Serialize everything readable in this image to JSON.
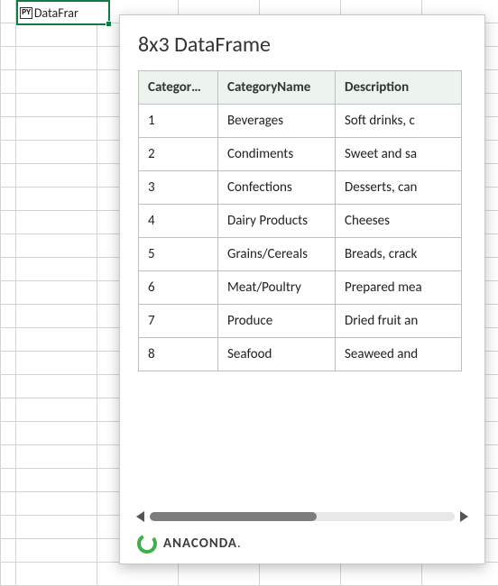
{
  "cell": {
    "badge": "PY",
    "text": "DataFrar"
  },
  "panel": {
    "title": "8x3 DataFrame",
    "columns": [
      "Categor…",
      "CategoryName",
      "Description"
    ],
    "rows": [
      {
        "id": "1",
        "name": "Beverages",
        "desc": "Soft drinks, c"
      },
      {
        "id": "2",
        "name": "Condiments",
        "desc": "Sweet and sa"
      },
      {
        "id": "3",
        "name": "Confections",
        "desc": "Desserts, can"
      },
      {
        "id": "4",
        "name": "Dairy Products",
        "desc": "Cheeses"
      },
      {
        "id": "5",
        "name": "Grains/Cereals",
        "desc": "Breads, crack"
      },
      {
        "id": "6",
        "name": "Meat/Poultry",
        "desc": "Prepared mea"
      },
      {
        "id": "7",
        "name": "Produce",
        "desc": "Dried fruit an"
      },
      {
        "id": "8",
        "name": "Seafood",
        "desc": "Seaweed and"
      }
    ]
  },
  "footer": {
    "brand": "ANACONDA",
    "suffix": "."
  },
  "style": {
    "selected_border": "#107c41",
    "header_bg": "#edf4ee",
    "table_border": "#bfbfbf",
    "grid_line": "#d4d4d4",
    "scroll_thumb": "#7d7d7d",
    "scroll_track": "#e8e8e8",
    "anaconda_green": "#3eb049"
  }
}
